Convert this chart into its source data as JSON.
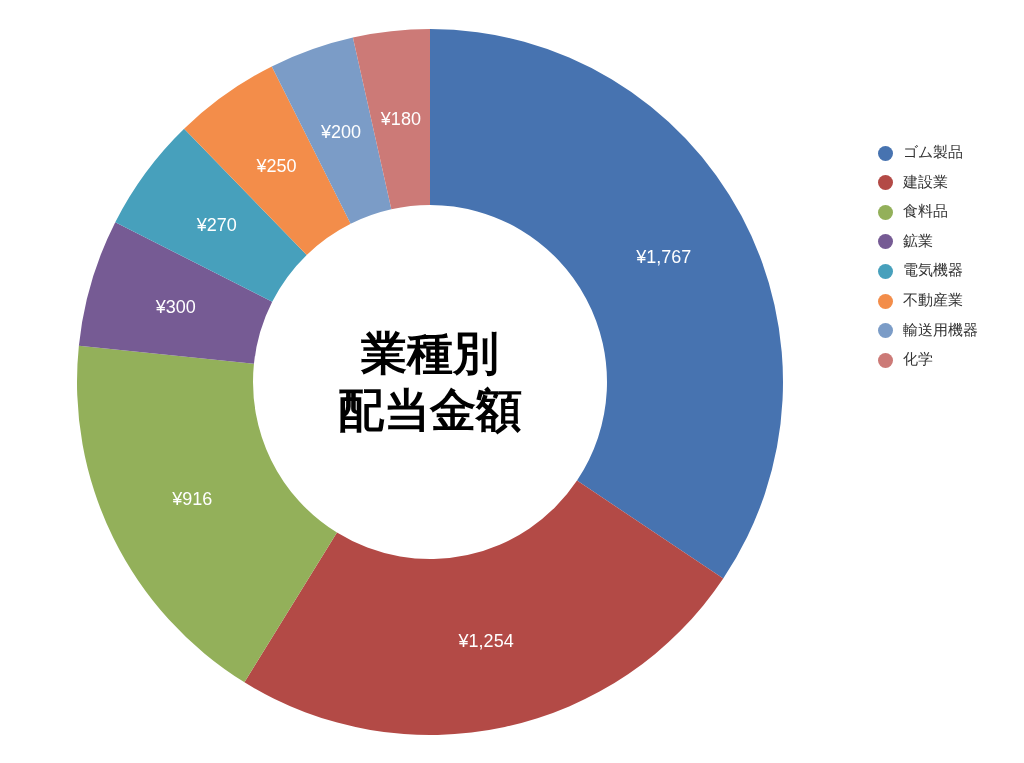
{
  "chart_data": {
    "type": "donut",
    "title": "業種別配当金額",
    "categories": [
      "ゴム製品",
      "建設業",
      "食料品",
      "鉱業",
      "電気機器",
      "不動産業",
      "輸送用機器",
      "化学"
    ],
    "values": [
      1767,
      1254,
      916,
      300,
      270,
      250,
      200,
      180
    ],
    "value_labels": [
      "¥1,767",
      "¥1,254",
      "¥916",
      "¥300",
      "¥270",
      "¥250",
      "¥200",
      "¥180"
    ],
    "colors": [
      "#4773b0",
      "#b34a46",
      "#93b05a",
      "#765b94",
      "#47a0bc",
      "#f38d4a",
      "#7b9cc7",
      "#cc7a77"
    ],
    "legend": "right"
  }
}
